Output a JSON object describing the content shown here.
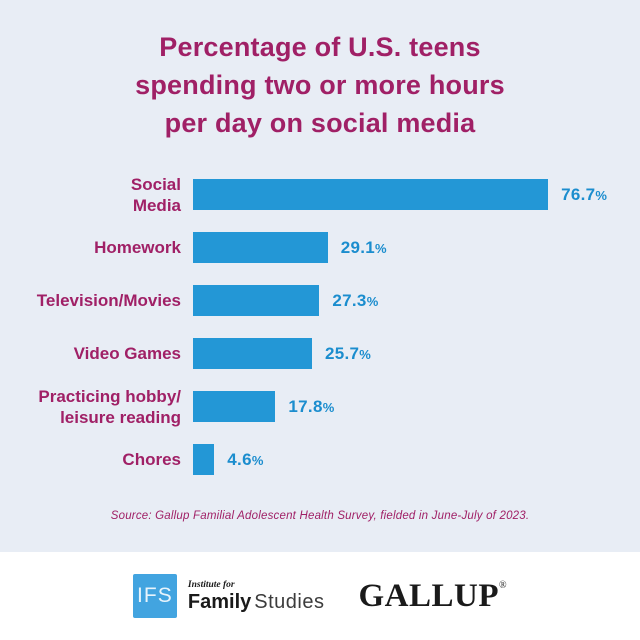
{
  "title": "Percentage of U.S. teens\nspending two or more hours\nper day on social media",
  "chart_data": {
    "type": "bar",
    "orientation": "horizontal",
    "title": "Percentage of U.S. teens spending two or more hours per day on social media",
    "categories": [
      "Social\nMedia",
      "Homework",
      "Television/Movies",
      "Video Games",
      "Practicing hobby/\nleisure reading",
      "Chores"
    ],
    "values": [
      76.7,
      29.1,
      27.3,
      25.7,
      17.8,
      4.6
    ],
    "value_labels": [
      "76.7%",
      "29.1%",
      "27.3%",
      "25.7%",
      "17.8%",
      "4.6%"
    ],
    "xlabel": "",
    "ylabel": "",
    "xlim": [
      0,
      80
    ],
    "grid": false,
    "legend": "none",
    "bar_color": "#2397d6",
    "category_label_color": "#a02066",
    "value_label_color": "#1b8dce",
    "background_color": "#e8edf5"
  },
  "source_note": "Source: Gallup Familial Adolescent Health Survey, fielded in June-July of 2023.",
  "footer": {
    "ifs_logo": {
      "abbr": "IFS",
      "line1": "Institute for",
      "name_bold": "Family",
      "name_regular": "Studies",
      "square_color": "#42a4e0"
    },
    "gallup_logo": {
      "wordmark": "GALLUP",
      "registered": "®"
    }
  },
  "colors": {
    "panel_background": "#e8edf5",
    "footer_background": "#ffffff",
    "accent_magenta": "#a02066",
    "accent_blue": "#2397d6"
  }
}
